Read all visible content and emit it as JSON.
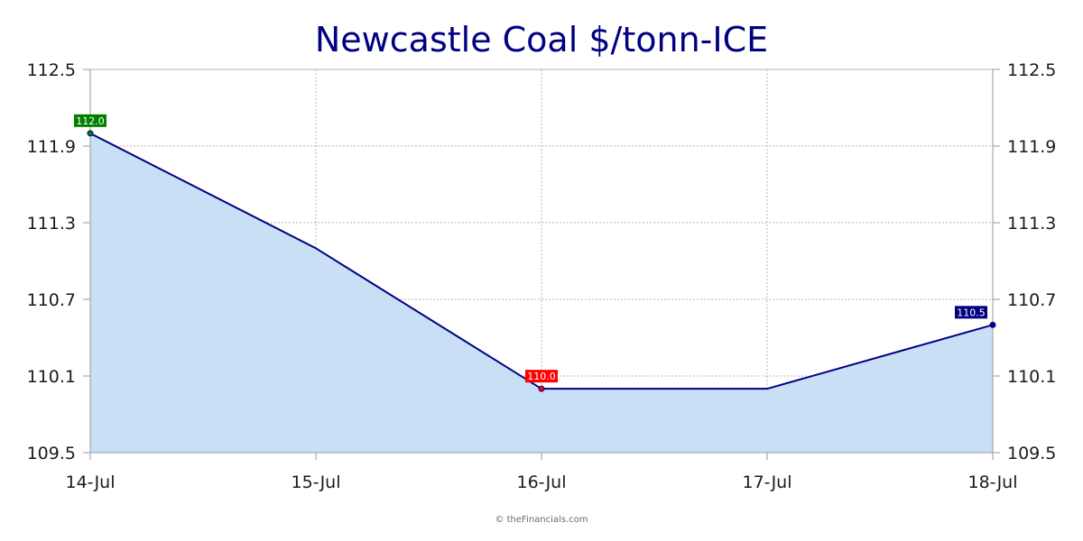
{
  "chart_data": {
    "type": "area",
    "title": "Newcastle Coal $/tonn-ICE",
    "categories": [
      "14-Jul",
      "15-Jul",
      "16-Jul",
      "17-Jul",
      "18-Jul"
    ],
    "series": [
      {
        "values": [
          112.0,
          111.1,
          110.0,
          110.0,
          110.5
        ]
      }
    ],
    "ylim": [
      109.5,
      112.5
    ],
    "yticks": [
      "109.5",
      "110.1",
      "110.7",
      "111.3",
      "111.9",
      "112.5"
    ],
    "ytick_values": [
      109.5,
      110.1,
      110.7,
      111.3,
      111.9,
      112.5
    ],
    "y_axis_sides": [
      "left",
      "right"
    ],
    "grid": true,
    "data_labels": [
      {
        "index": 0,
        "text": "112.0",
        "color": "#008000"
      },
      {
        "index": 2,
        "text": "110.0",
        "color": "#ff0000"
      },
      {
        "index": 4,
        "text": "110.5",
        "color": "#000080"
      }
    ],
    "colors": {
      "line": "#000080",
      "fill": "#c9dff5",
      "title": "#000080",
      "grid": "#b4b4b4",
      "axis": "#999999"
    }
  },
  "footer": "© theFinancials.com"
}
